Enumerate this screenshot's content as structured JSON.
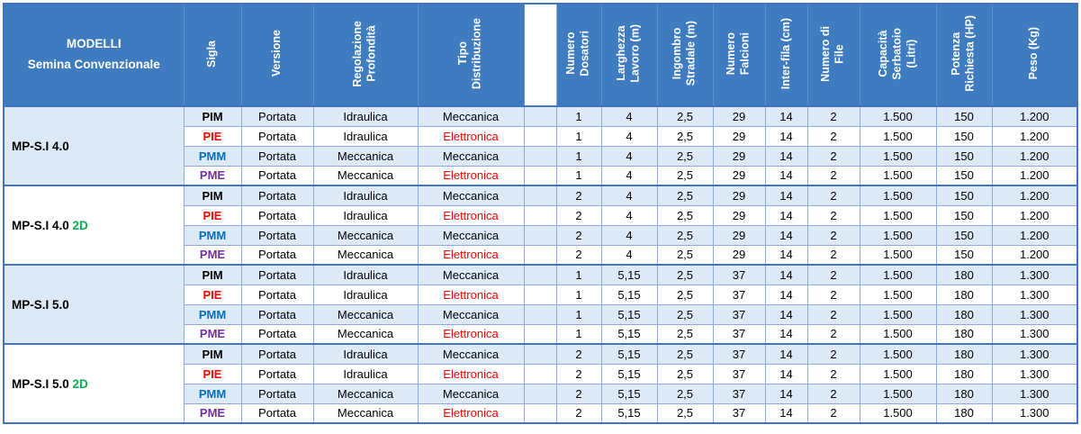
{
  "title": {
    "line1": "MODELLI",
    "line2": "Semina Convenzionale"
  },
  "columns": [
    {
      "label": "Sigla"
    },
    {
      "label": "Versione"
    },
    {
      "label": "Regolazione\nProfondità"
    },
    {
      "label": "Tipo\nDistribuzione"
    },
    {
      "label": "Numero\nDosatori"
    },
    {
      "label": "Larghezza\nLavoro (m)"
    },
    {
      "label": "Ingombro\nStradale (m)"
    },
    {
      "label": "Numero\nFalcioni"
    },
    {
      "label": "Inter-fila (cm)"
    },
    {
      "label": "Numero di\nFile"
    },
    {
      "label": "Capacità\nSerbatoio\n(Litri)"
    },
    {
      "label": "Potenza\nRichiesta (HP)"
    },
    {
      "label": "Peso (Kg)"
    }
  ],
  "groups": [
    {
      "model": "MP-S.I 4.0",
      "suffix": "",
      "rows": [
        {
          "sigla": "PIM",
          "sigla_color": "black",
          "versione": "Portata",
          "regolazione": "Idraulica",
          "tipo": "Meccanica",
          "tipo_color": "black",
          "values": [
            "1",
            "4",
            "2,5",
            "29",
            "14",
            "2",
            "1.500",
            "150",
            "1.200"
          ]
        },
        {
          "sigla": "PIE",
          "sigla_color": "red",
          "versione": "Portata",
          "regolazione": "Idraulica",
          "tipo": "Elettronica",
          "tipo_color": "red",
          "values": [
            "1",
            "4",
            "2,5",
            "29",
            "14",
            "2",
            "1.500",
            "150",
            "1.200"
          ]
        },
        {
          "sigla": "PMM",
          "sigla_color": "blue",
          "versione": "Portata",
          "regolazione": "Meccanica",
          "tipo": "Meccanica",
          "tipo_color": "black",
          "values": [
            "1",
            "4",
            "2,5",
            "29",
            "14",
            "2",
            "1.500",
            "150",
            "1.200"
          ]
        },
        {
          "sigla": "PME",
          "sigla_color": "purple",
          "versione": "Portata",
          "regolazione": "Meccanica",
          "tipo": "Elettronica",
          "tipo_color": "red",
          "values": [
            "1",
            "4",
            "2,5",
            "29",
            "14",
            "2",
            "1.500",
            "150",
            "1.200"
          ]
        }
      ]
    },
    {
      "model": "MP-S.I 4.0",
      "suffix": "2D",
      "rows": [
        {
          "sigla": "PIM",
          "sigla_color": "black",
          "versione": "Portata",
          "regolazione": "Idraulica",
          "tipo": "Meccanica",
          "tipo_color": "black",
          "values": [
            "2",
            "4",
            "2,5",
            "29",
            "14",
            "2",
            "1.500",
            "150",
            "1.200"
          ]
        },
        {
          "sigla": "PIE",
          "sigla_color": "red",
          "versione": "Portata",
          "regolazione": "Idraulica",
          "tipo": "Elettronica",
          "tipo_color": "red",
          "values": [
            "2",
            "4",
            "2,5",
            "29",
            "14",
            "2",
            "1.500",
            "150",
            "1.200"
          ]
        },
        {
          "sigla": "PMM",
          "sigla_color": "blue",
          "versione": "Portata",
          "regolazione": "Meccanica",
          "tipo": "Meccanica",
          "tipo_color": "black",
          "values": [
            "2",
            "4",
            "2,5",
            "29",
            "14",
            "2",
            "1.500",
            "150",
            "1.200"
          ]
        },
        {
          "sigla": "PME",
          "sigla_color": "purple",
          "versione": "Portata",
          "regolazione": "Meccanica",
          "tipo": "Elettronica",
          "tipo_color": "red",
          "values": [
            "2",
            "4",
            "2,5",
            "29",
            "14",
            "2",
            "1.500",
            "150",
            "1.200"
          ]
        }
      ]
    },
    {
      "model": "MP-S.I 5.0",
      "suffix": "",
      "rows": [
        {
          "sigla": "PIM",
          "sigla_color": "black",
          "versione": "Portata",
          "regolazione": "Idraulica",
          "tipo": "Meccanica",
          "tipo_color": "black",
          "values": [
            "1",
            "5,15",
            "2,5",
            "37",
            "14",
            "2",
            "1.500",
            "180",
            "1.300"
          ]
        },
        {
          "sigla": "PIE",
          "sigla_color": "red",
          "versione": "Portata",
          "regolazione": "Idraulica",
          "tipo": "Elettronica",
          "tipo_color": "red",
          "values": [
            "1",
            "5,15",
            "2,5",
            "37",
            "14",
            "2",
            "1.500",
            "180",
            "1.300"
          ]
        },
        {
          "sigla": "PMM",
          "sigla_color": "blue",
          "versione": "Portata",
          "regolazione": "Meccanica",
          "tipo": "Meccanica",
          "tipo_color": "black",
          "values": [
            "1",
            "5,15",
            "2,5",
            "37",
            "14",
            "2",
            "1.500",
            "180",
            "1.300"
          ]
        },
        {
          "sigla": "PME",
          "sigla_color": "purple",
          "versione": "Portata",
          "regolazione": "Meccanica",
          "tipo": "Elettronica",
          "tipo_color": "red",
          "values": [
            "1",
            "5,15",
            "2,5",
            "37",
            "14",
            "2",
            "1.500",
            "180",
            "1.300"
          ]
        }
      ]
    },
    {
      "model": "MP-S.I 5.0",
      "suffix": "2D",
      "rows": [
        {
          "sigla": "PIM",
          "sigla_color": "black",
          "versione": "Portata",
          "regolazione": "Idraulica",
          "tipo": "Meccanica",
          "tipo_color": "black",
          "values": [
            "2",
            "5,15",
            "2,5",
            "37",
            "14",
            "2",
            "1.500",
            "180",
            "1.300"
          ]
        },
        {
          "sigla": "PIE",
          "sigla_color": "red",
          "versione": "Portata",
          "regolazione": "Idraulica",
          "tipo": "Elettronica",
          "tipo_color": "red",
          "values": [
            "2",
            "5,15",
            "2,5",
            "37",
            "14",
            "2",
            "1.500",
            "180",
            "1.300"
          ]
        },
        {
          "sigla": "PMM",
          "sigla_color": "blue",
          "versione": "Portata",
          "regolazione": "Meccanica",
          "tipo": "Meccanica",
          "tipo_color": "black",
          "values": [
            "2",
            "5,15",
            "2,5",
            "37",
            "14",
            "2",
            "1.500",
            "180",
            "1.300"
          ]
        },
        {
          "sigla": "PME",
          "sigla_color": "purple",
          "versione": "Portata",
          "regolazione": "Meccanica",
          "tipo": "Elettronica",
          "tipo_color": "red",
          "values": [
            "2",
            "5,15",
            "2,5",
            "37",
            "14",
            "2",
            "1.500",
            "180",
            "1.300"
          ]
        }
      ]
    }
  ],
  "colors": {
    "header_bg": "#3F7CBF",
    "band": "#DCE9F7",
    "border": "#8EAADB",
    "outer": "#4472C4",
    "red": "#FF0000",
    "blue": "#0070C0",
    "purple": "#7030A0",
    "green": "#00B050",
    "black": "#000000",
    "white": "#FFFFFF"
  }
}
